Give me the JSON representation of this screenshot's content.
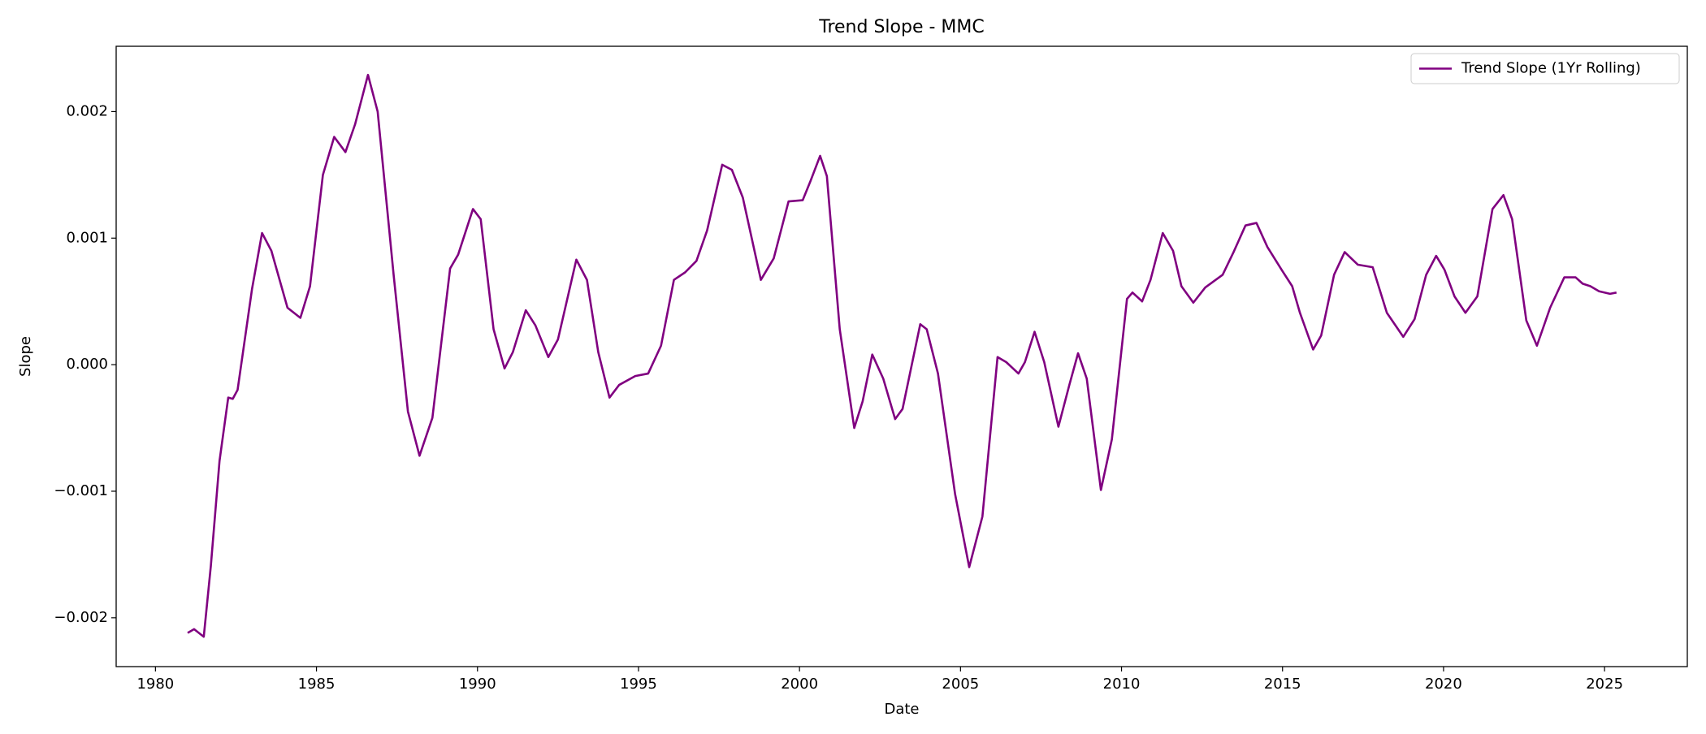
{
  "chart_data": {
    "type": "line",
    "title": "Trend Slope - MMC",
    "xlabel": "Date",
    "ylabel": "Slope",
    "x": [
      1981.0,
      1981.2,
      1981.5,
      1981.72,
      1981.99,
      1982.26,
      1982.4,
      1982.55,
      1983.0,
      1983.31,
      1983.6,
      1984.1,
      1984.5,
      1984.8,
      1985.2,
      1985.55,
      1985.9,
      1986.2,
      1986.6,
      1986.9,
      1987.4,
      1987.84,
      1988.2,
      1988.6,
      1989.15,
      1989.4,
      1989.86,
      1990.1,
      1990.5,
      1990.84,
      1991.1,
      1991.5,
      1991.8,
      1992.2,
      1992.5,
      1993.07,
      1993.4,
      1993.75,
      1994.1,
      1994.4,
      1994.9,
      1995.3,
      1995.7,
      1996.1,
      1996.45,
      1996.8,
      1997.13,
      1997.6,
      1997.9,
      1998.24,
      1998.8,
      1999.2,
      1999.66,
      2000.1,
      2000.34,
      2000.64,
      2000.85,
      2001.25,
      2001.7,
      2001.96,
      2002.26,
      2002.6,
      2002.97,
      2003.2,
      2003.75,
      2003.95,
      2004.3,
      2004.83,
      2005.27,
      2005.68,
      2006.15,
      2006.42,
      2006.8,
      2007.0,
      2007.3,
      2007.6,
      2008.04,
      2008.38,
      2008.65,
      2008.92,
      2009.36,
      2009.7,
      2010.17,
      2010.34,
      2010.64,
      2010.9,
      2011.28,
      2011.6,
      2011.86,
      2012.23,
      2012.6,
      2013.14,
      2013.48,
      2013.85,
      2014.19,
      2014.53,
      2014.97,
      2015.3,
      2015.54,
      2015.95,
      2016.2,
      2016.6,
      2016.93,
      2017.34,
      2017.8,
      2018.24,
      2018.75,
      2019.1,
      2019.46,
      2019.77,
      2020.03,
      2020.34,
      2020.68,
      2021.05,
      2021.52,
      2021.86,
      2022.13,
      2022.57,
      2022.9,
      2023.31,
      2023.75,
      2024.1,
      2024.32,
      2024.56,
      2024.83,
      2025.17,
      2025.37
    ],
    "series": [
      {
        "name": "Trend Slope (1Yr Rolling)",
        "color": "#800080",
        "values": [
          -0.00212,
          -0.00209,
          -0.00215,
          -0.00159,
          -0.00076,
          -0.00026,
          -0.00027,
          -0.0002,
          0.0006,
          0.00104,
          0.0009,
          0.00045,
          0.00037,
          0.00062,
          0.0015,
          0.0018,
          0.00168,
          0.0019,
          0.00229,
          0.002,
          0.0007,
          -0.00037,
          -0.00072,
          -0.00042,
          0.00076,
          0.00087,
          0.00123,
          0.00115,
          0.00028,
          -3e-05,
          0.0001,
          0.00043,
          0.00031,
          6e-05,
          0.0002,
          0.00083,
          0.00067,
          0.0001,
          -0.00026,
          -0.00016,
          -9e-05,
          -7e-05,
          0.00015,
          0.00067,
          0.00073,
          0.00082,
          0.00106,
          0.00158,
          0.00154,
          0.00132,
          0.00067,
          0.00084,
          0.00129,
          0.0013,
          0.00145,
          0.00165,
          0.00149,
          0.00028,
          -0.0005,
          -0.00029,
          8e-05,
          -0.00011,
          -0.00043,
          -0.00035,
          0.00032,
          0.00028,
          -7e-05,
          -0.00102,
          -0.0016,
          -0.0012,
          6e-05,
          2e-05,
          -7e-05,
          2e-05,
          0.00026,
          2e-05,
          -0.00049,
          -0.00016,
          9e-05,
          -0.00011,
          -0.00099,
          -0.00059,
          0.00052,
          0.00057,
          0.0005,
          0.00067,
          0.00104,
          0.0009,
          0.00062,
          0.00049,
          0.00061,
          0.00071,
          0.00089,
          0.0011,
          0.00112,
          0.00093,
          0.00075,
          0.00062,
          0.00041,
          0.00012,
          0.00023,
          0.00071,
          0.00089,
          0.00079,
          0.00077,
          0.00041,
          0.00022,
          0.00036,
          0.00071,
          0.00086,
          0.00075,
          0.00054,
          0.00041,
          0.00054,
          0.00123,
          0.00134,
          0.00115,
          0.00035,
          0.00015,
          0.00045,
          0.00069,
          0.00069,
          0.00064,
          0.00062,
          0.00058,
          0.00056,
          0.00057
        ]
      }
    ],
    "xlim": [
      1978.78,
      2027.57
    ],
    "xticks": [
      1980,
      1985,
      1990,
      1995,
      2000,
      2005,
      2010,
      2015,
      2020,
      2025
    ],
    "ylim": [
      -0.002386,
      0.002516
    ],
    "yticks": [
      {
        "value": -0.002,
        "label": "−0.002"
      },
      {
        "value": -0.001,
        "label": "−0.001"
      },
      {
        "value": 0,
        "label": "0.000"
      },
      0.001,
      0.002
    ],
    "grid": false,
    "legend": "upper right"
  }
}
